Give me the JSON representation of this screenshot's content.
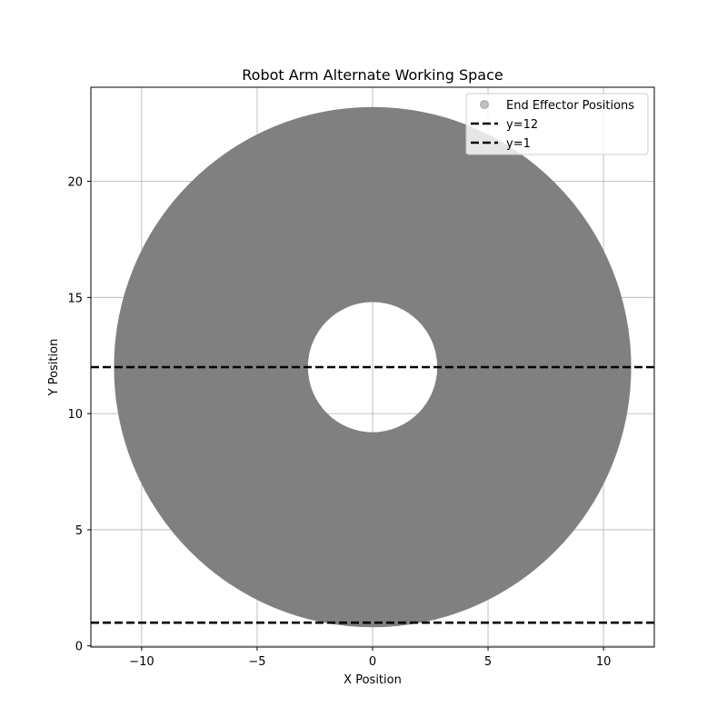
{
  "chart_data": {
    "type": "scatter",
    "title": "Robot Arm Alternate Working Space",
    "xlabel": "X Position",
    "ylabel": "Y Position",
    "xlim": [
      -12.2,
      12.2
    ],
    "ylim": [
      -0.05,
      24.05
    ],
    "xticks": [
      -10,
      -5,
      0,
      5,
      10
    ],
    "xtick_labels": [
      "−10",
      "−5",
      "0",
      "5",
      "10"
    ],
    "yticks": [
      0,
      5,
      10,
      15,
      20
    ],
    "ytick_labels": [
      "0",
      "5",
      "10",
      "15",
      "20"
    ],
    "grid": true,
    "legend_placement": "top-right",
    "series": [
      {
        "name": "End Effector Positions",
        "kind": "scatter-region",
        "shape": "annulus",
        "center": [
          0,
          12
        ],
        "outer_radius": 11.2,
        "inner_radius": 2.8,
        "color": "#808080",
        "legend_marker_color": "#bfbfbf"
      },
      {
        "name": "y=12",
        "kind": "hline",
        "y": 12,
        "color": "#000000",
        "style": "dashed"
      },
      {
        "name": "y=1",
        "kind": "hline",
        "y": 1,
        "color": "#000000",
        "style": "dashed"
      }
    ]
  }
}
